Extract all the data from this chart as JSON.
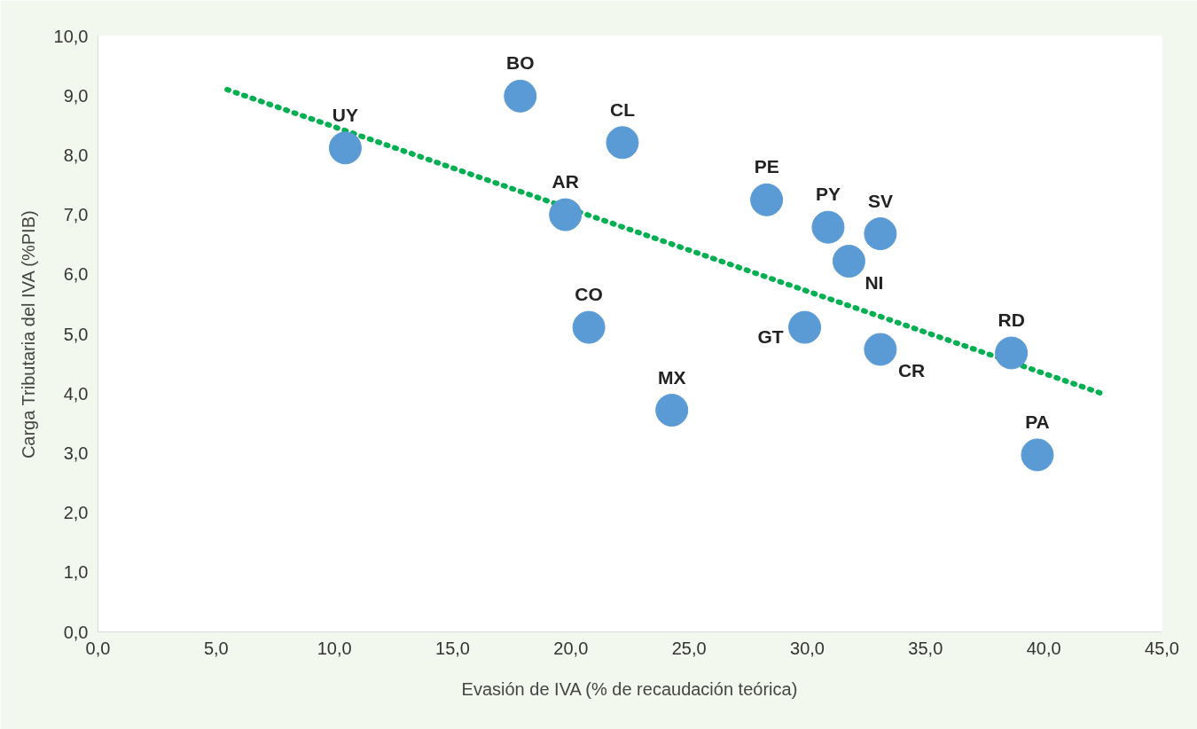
{
  "chart_data": {
    "type": "scatter",
    "xlabel": "Evasión de IVA (% de recaudación teórica)",
    "ylabel": "Carga Tributaria del IVA (%PIB)",
    "series": [
      {
        "color": "#5b9bd5",
        "marker": "circle",
        "x": [
          10.46,
          17.86,
          22.18,
          19.77,
          28.28,
          30.88,
          33.09,
          31.76,
          20.76,
          29.89,
          33.09,
          38.63,
          24.27,
          39.73
        ],
        "values": [
          8.12,
          8.99,
          8.21,
          7.0,
          7.25,
          6.79,
          6.68,
          6.22,
          5.11,
          5.11,
          4.74,
          4.68,
          3.72,
          2.97
        ]
      },
      {
        "type": "line",
        "color": "#00b050",
        "line_style": "dotted",
        "x": [
          5.46,
          42.6
        ],
        "values": [
          9.1,
          3.98
        ]
      }
    ],
    "annotations": [
      {
        "text": "UY",
        "x": 10.46,
        "y": 8.12
      },
      {
        "text": "BO",
        "x": 17.86,
        "y": 8.99
      },
      {
        "text": "CL",
        "x": 22.18,
        "y": 8.21
      },
      {
        "text": "AR",
        "x": 19.77,
        "y": 7.0
      },
      {
        "text": "PE",
        "x": 28.28,
        "y": 7.25
      },
      {
        "text": "PY",
        "x": 30.88,
        "y": 6.79
      },
      {
        "text": "SV",
        "x": 33.09,
        "y": 6.68
      },
      {
        "text": "NI",
        "x": 31.76,
        "y": 6.22
      },
      {
        "text": "CO",
        "x": 20.76,
        "y": 5.11
      },
      {
        "text": "GT",
        "x": 29.89,
        "y": 5.11
      },
      {
        "text": "CR",
        "x": 33.09,
        "y": 4.74
      },
      {
        "text": "RD",
        "x": 38.63,
        "y": 4.68
      },
      {
        "text": "MX",
        "x": 24.27,
        "y": 3.72
      },
      {
        "text": "PA",
        "x": 39.73,
        "y": 2.97
      }
    ],
    "xlim": [
      0,
      45
    ],
    "ylim": [
      0,
      10
    ],
    "xticks": [
      {
        "value": 0,
        "label": "0,0"
      },
      {
        "value": 5,
        "label": "5,0"
      },
      {
        "value": 10,
        "label": "10,0"
      },
      {
        "value": 15,
        "label": "15,0"
      },
      {
        "value": 20,
        "label": "20,0"
      },
      {
        "value": 25,
        "label": "25,0"
      },
      {
        "value": 30,
        "label": "30,0"
      },
      {
        "value": 35,
        "label": "35,0"
      },
      {
        "value": 40,
        "label": "40,0"
      },
      {
        "value": 45,
        "label": "45,0"
      }
    ],
    "yticks": [
      {
        "value": 0,
        "label": "0,0"
      },
      {
        "value": 1,
        "label": "1,0"
      },
      {
        "value": 2,
        "label": "2,0"
      },
      {
        "value": 3,
        "label": "3,0"
      },
      {
        "value": 4,
        "label": "4,0"
      },
      {
        "value": 5,
        "label": "5,0"
      },
      {
        "value": 6,
        "label": "6,0"
      },
      {
        "value": 7,
        "label": "7,0"
      },
      {
        "value": 8,
        "label": "8,0"
      },
      {
        "value": 9,
        "label": "9,0"
      },
      {
        "value": 10,
        "label": "10,0"
      }
    ],
    "grid": false
  }
}
